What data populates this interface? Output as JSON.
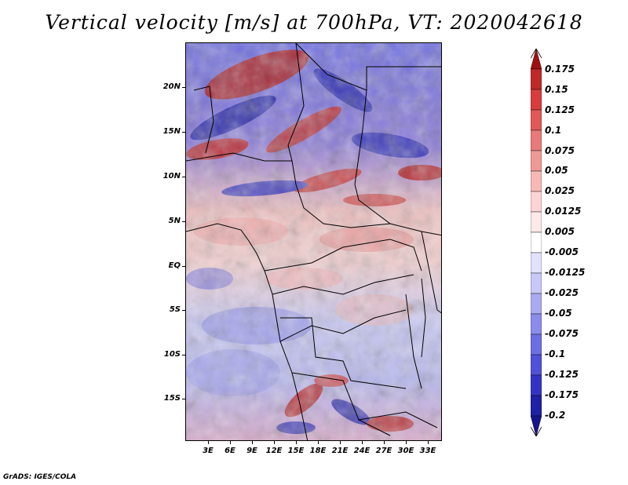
{
  "title": "Vertical velocity [m/s] at 700hPa, VT: 2020042618",
  "credit": "GrADS: IGES/COLA",
  "map": {
    "lat_labels": [
      "20N",
      "15N",
      "10N",
      "5N",
      "EQ",
      "5S",
      "10S",
      "15S"
    ],
    "lon_labels": [
      "3E",
      "6E",
      "9E",
      "12E",
      "15E",
      "18E",
      "21E",
      "24E",
      "27E",
      "30E",
      "33E"
    ],
    "field": "700hPa vertical velocity (m/s)",
    "region": "Central Africa"
  },
  "colorbar": {
    "levels": [
      "0.175",
      "0.15",
      "0.125",
      "0.1",
      "0.075",
      "0.05",
      "0.025",
      "0.0125",
      "0.005",
      "-0.005",
      "-0.0125",
      "-0.025",
      "-0.05",
      "-0.075",
      "-0.1",
      "-0.125",
      "-0.175",
      "-0.2"
    ],
    "colors": [
      "#a01010",
      "#c02828",
      "#d83c3c",
      "#e05858",
      "#e87a7a",
      "#f09898",
      "#f8b8b8",
      "#fcd4d4",
      "#fee8e8",
      "#ffffff",
      "#e2e2fc",
      "#c8c8f8",
      "#aaaaf2",
      "#8c8cec",
      "#6e6ee4",
      "#5050d8",
      "#3434c4",
      "#2020a8",
      "#14148c"
    ]
  }
}
